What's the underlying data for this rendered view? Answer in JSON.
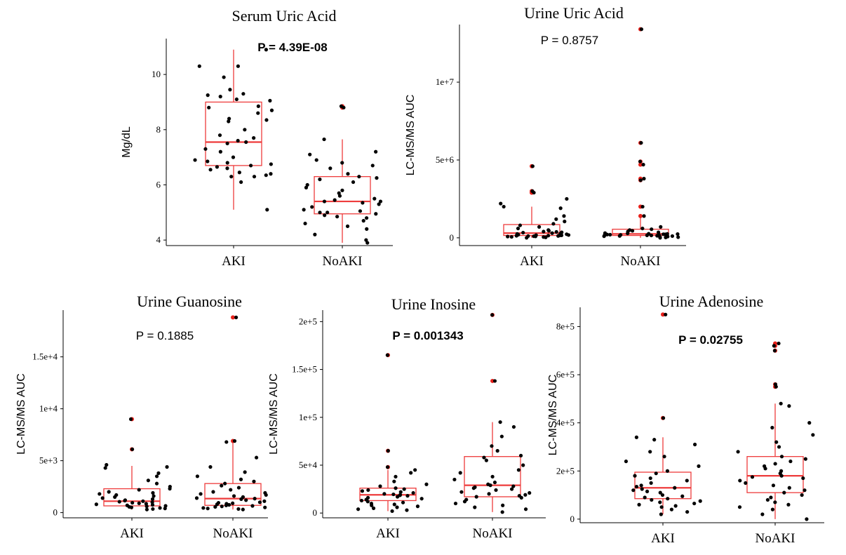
{
  "chart_data": [
    {
      "type": "box",
      "title": "Serum Uric Acid",
      "ylabel": "Mg/dL",
      "p_text": "P = 4.39E-08",
      "p_bold": true,
      "ylim": [
        3.8,
        11.3
      ],
      "yticks": [
        4,
        6,
        8,
        10
      ],
      "tick_labels": [
        "4",
        "6",
        "8",
        "10"
      ],
      "categories": [
        "AKI",
        "NoAKI"
      ],
      "groups": [
        {
          "name": "AKI",
          "min": 5.1,
          "q1": 6.7,
          "median": 7.55,
          "q3": 9.0,
          "max": 10.9,
          "outliers": [],
          "points": [
            10.9,
            10.3,
            10.3,
            9.9,
            9.45,
            9.3,
            9.25,
            9.2,
            9.1,
            9.05,
            8.85,
            8.8,
            8.7,
            8.6,
            8.4,
            8.35,
            8.3,
            8.0,
            7.8,
            7.7,
            7.6,
            7.55,
            7.5,
            7.3,
            7.2,
            7.0,
            6.9,
            6.85,
            6.8,
            6.75,
            6.7,
            6.65,
            6.6,
            6.55,
            6.45,
            6.4,
            6.35,
            6.3,
            6.3,
            6.1,
            5.1
          ]
        },
        {
          "name": "NoAKI",
          "min": 3.9,
          "q1": 4.95,
          "median": 5.4,
          "q3": 6.3,
          "max": 7.65,
          "outliers": [
            8.85,
            8.8
          ],
          "points": [
            8.85,
            8.8,
            7.65,
            7.2,
            7.1,
            6.9,
            6.8,
            6.7,
            6.6,
            6.4,
            6.3,
            6.25,
            6.2,
            6.1,
            6.0,
            5.9,
            5.8,
            5.7,
            5.6,
            5.5,
            5.45,
            5.4,
            5.4,
            5.35,
            5.3,
            5.2,
            5.1,
            5.05,
            5.0,
            5.0,
            4.95,
            4.9,
            4.85,
            4.8,
            4.7,
            4.6,
            4.5,
            4.4,
            4.2,
            4.0,
            3.9
          ]
        }
      ]
    },
    {
      "type": "box",
      "title": "Urine Uric Acid",
      "ylabel": "LC-MS/MS AUC",
      "p_text": "P = 0.8757",
      "p_bold": false,
      "ylim": [
        -500000,
        13700000
      ],
      "yticks": [
        0,
        5000000,
        10000000
      ],
      "tick_labels": [
        "0",
        "5e+6",
        "1e+7"
      ],
      "categories": [
        "AKI",
        "NoAKI"
      ],
      "groups": [
        {
          "name": "AKI",
          "min": 0,
          "q1": 150000,
          "median": 300000,
          "q3": 850000,
          "max": 2000000,
          "outliers": [
            4600000,
            3000000,
            2900000
          ],
          "points": [
            4600000,
            3000000,
            2900000,
            2500000,
            2200000,
            2000000,
            1900000,
            1400000,
            1200000,
            1050000,
            900000,
            800000,
            700000,
            600000,
            500000,
            450000,
            400000,
            380000,
            350000,
            330000,
            300000,
            280000,
            250000,
            230000,
            200000,
            180000,
            170000,
            160000,
            150000,
            140000,
            130000,
            120000,
            110000,
            100000,
            90000,
            80000,
            60000,
            50000,
            30000,
            0
          ]
        },
        {
          "name": "NoAKI",
          "min": 0,
          "q1": 150000,
          "median": 250000,
          "q3": 550000,
          "max": 1400000,
          "outliers": [
            13400000,
            6100000,
            4900000,
            4700000,
            3800000,
            3700000,
            2000000,
            1400000
          ],
          "points": [
            13400000,
            6100000,
            4900000,
            4700000,
            3800000,
            3700000,
            2000000,
            1400000,
            700000,
            600000,
            550000,
            500000,
            450000,
            400000,
            350000,
            300000,
            280000,
            260000,
            250000,
            240000,
            230000,
            220000,
            210000,
            200000,
            190000,
            180000,
            170000,
            160000,
            150000,
            140000,
            130000,
            120000,
            110000,
            100000,
            80000,
            60000,
            40000,
            20000,
            0
          ]
        }
      ]
    },
    {
      "type": "box",
      "title": "Urine Guanosine",
      "ylabel": "LC-MS/MS AUC",
      "p_text": "P = 0.1885",
      "p_bold": false,
      "ylim": [
        -500,
        19500
      ],
      "yticks": [
        0,
        5000,
        10000,
        15000
      ],
      "tick_labels": [
        "0",
        "5e+3",
        "1e+4",
        "1.5e+4"
      ],
      "categories": [
        "AKI",
        "NoAKI"
      ],
      "groups": [
        {
          "name": "AKI",
          "min": 300,
          "q1": 650,
          "median": 1100,
          "q3": 2300,
          "max": 4500,
          "outliers": [
            9000,
            6100
          ],
          "points": [
            9000,
            6100,
            4600,
            4400,
            4300,
            3800,
            3500,
            3100,
            2800,
            2500,
            2300,
            2200,
            2000,
            1900,
            1800,
            1700,
            1600,
            1500,
            1400,
            1300,
            1200,
            1150,
            1100,
            1050,
            1000,
            950,
            900,
            850,
            800,
            750,
            700,
            650,
            600,
            550,
            500,
            450,
            400,
            350,
            300
          ]
        },
        {
          "name": "NoAKI",
          "min": 300,
          "q1": 700,
          "median": 1350,
          "q3": 2800,
          "max": 6900,
          "outliers": [
            18800,
            6900
          ],
          "points": [
            18800,
            6900,
            6800,
            5300,
            4400,
            3900,
            3500,
            3200,
            3000,
            2800,
            2600,
            2400,
            2200,
            2000,
            1900,
            1800,
            1700,
            1600,
            1500,
            1400,
            1350,
            1300,
            1200,
            1100,
            1000,
            950,
            900,
            850,
            800,
            750,
            700,
            650,
            600,
            550,
            500,
            450,
            400,
            350,
            300
          ]
        }
      ]
    },
    {
      "type": "box",
      "title": "Urine Inosine",
      "ylabel": "LC-MS/MS AUC",
      "p_text": "P = 0.001343",
      "p_bold": true,
      "ylim": [
        -5000,
        212000
      ],
      "yticks": [
        0,
        50000,
        100000,
        150000,
        200000
      ],
      "tick_labels": [
        "0",
        "5e+4",
        "1e+5",
        "1.5e+5",
        "2e+5"
      ],
      "categories": [
        "AKI",
        "NoAKI"
      ],
      "groups": [
        {
          "name": "AKI",
          "min": 2000,
          "q1": 13000,
          "median": 19000,
          "q3": 26000,
          "max": 45000,
          "outliers": [
            165000,
            65000,
            48000
          ],
          "points": [
            165000,
            65000,
            48000,
            45000,
            42000,
            38000,
            33000,
            30000,
            28000,
            26000,
            25000,
            24000,
            23000,
            22000,
            21000,
            20000,
            19500,
            19000,
            18500,
            18000,
            17000,
            16000,
            15000,
            14000,
            13000,
            12000,
            11000,
            10000,
            9000,
            8000,
            7000,
            6000,
            5000,
            4000,
            3000,
            2000
          ]
        },
        {
          "name": "NoAKI",
          "min": 1000,
          "q1": 17000,
          "median": 29000,
          "q3": 59000,
          "max": 95000,
          "outliers": [
            207000,
            138000
          ],
          "points": [
            207000,
            138000,
            95000,
            90000,
            80000,
            70000,
            65000,
            60000,
            58000,
            55000,
            50000,
            45000,
            42000,
            38000,
            35000,
            32000,
            30000,
            29000,
            28000,
            27000,
            26000,
            25000,
            24000,
            22000,
            21000,
            20000,
            19000,
            18000,
            17000,
            16000,
            14000,
            12000,
            10000,
            8000,
            6000,
            4000,
            1000
          ]
        }
      ]
    },
    {
      "type": "box",
      "title": "Urine Adenosine",
      "ylabel": "LC-MS/MS AUC",
      "p_text": "P = 0.02755",
      "p_bold": true,
      "ylim": [
        -15000,
        880000
      ],
      "yticks": [
        0,
        200000,
        400000,
        600000,
        800000
      ],
      "tick_labels": [
        "0",
        "2e+5",
        "4e+5",
        "6e+5",
        "8e+5"
      ],
      "categories": [
        "AKI",
        "NoAKI"
      ],
      "groups": [
        {
          "name": "AKI",
          "min": 20000,
          "q1": 85000,
          "median": 130000,
          "q3": 195000,
          "max": 340000,
          "outliers": [
            850000,
            420000
          ],
          "points": [
            850000,
            420000,
            340000,
            330000,
            310000,
            280000,
            260000,
            240000,
            220000,
            200000,
            190000,
            180000,
            170000,
            160000,
            150000,
            140000,
            135000,
            130000,
            125000,
            120000,
            115000,
            110000,
            100000,
            95000,
            90000,
            85000,
            80000,
            75000,
            70000,
            65000,
            60000,
            55000,
            50000,
            40000,
            30000,
            20000
          ]
        },
        {
          "name": "NoAKI",
          "min": 0,
          "q1": 110000,
          "median": 180000,
          "q3": 260000,
          "max": 480000,
          "outliers": [
            730000,
            720000,
            700000,
            560000,
            550000
          ],
          "points": [
            730000,
            720000,
            700000,
            560000,
            550000,
            480000,
            470000,
            400000,
            380000,
            350000,
            320000,
            300000,
            280000,
            260000,
            250000,
            240000,
            230000,
            220000,
            210000,
            200000,
            190000,
            180000,
            175000,
            170000,
            160000,
            150000,
            140000,
            130000,
            120000,
            110000,
            100000,
            90000,
            80000,
            70000,
            60000,
            50000,
            40000,
            20000,
            0
          ]
        }
      ]
    }
  ]
}
